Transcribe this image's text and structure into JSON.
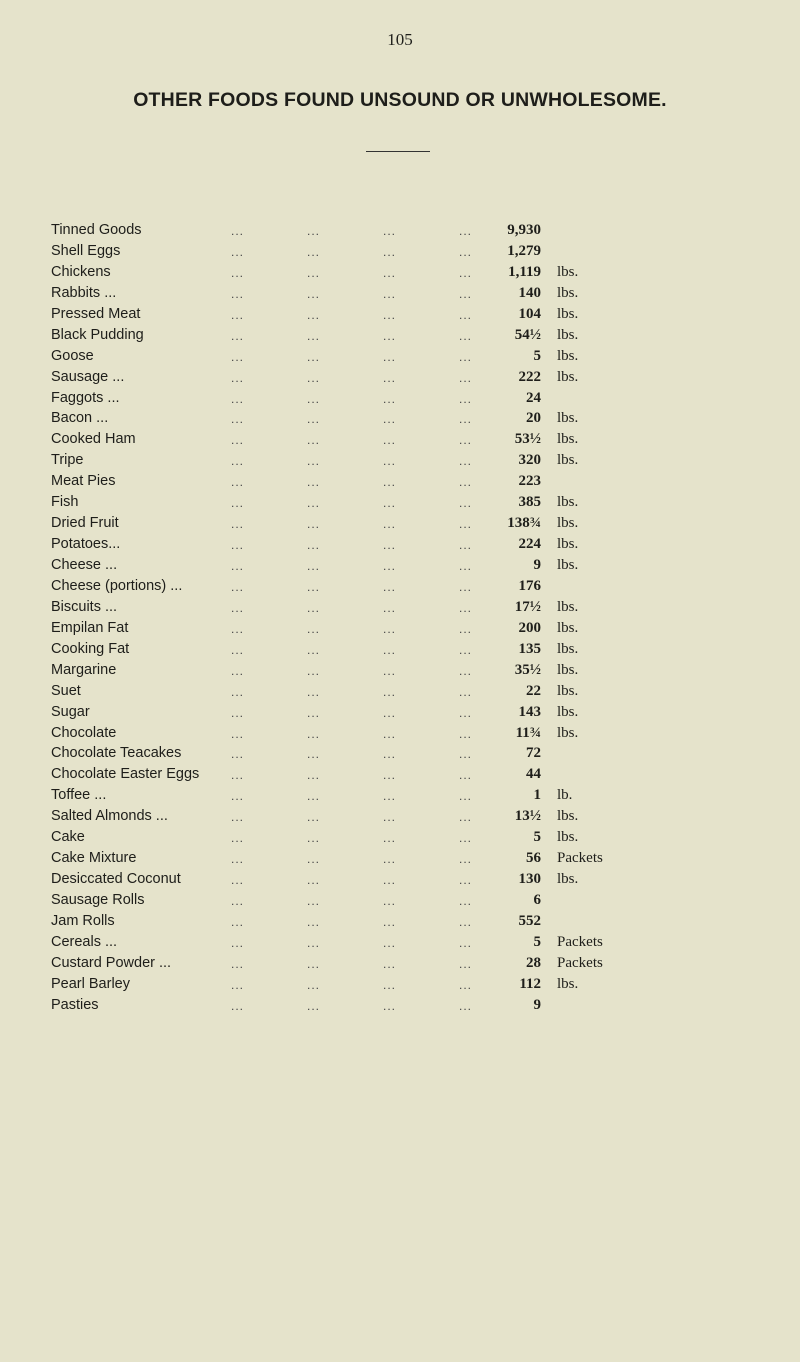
{
  "page_number": "105",
  "title": "OTHER FOODS FOUND UNSOUND OR UNWHOLESOME.",
  "leader": "...",
  "items": [
    {
      "name": "Tinned Goods",
      "value": "9,930",
      "unit": ""
    },
    {
      "name": "Shell Eggs",
      "value": "1,279",
      "unit": ""
    },
    {
      "name": "Chickens",
      "value": "1,119",
      "unit": "lbs."
    },
    {
      "name": "Rabbits ...",
      "value": "140",
      "unit": "lbs."
    },
    {
      "name": "Pressed Meat",
      "value": "104",
      "unit": "lbs."
    },
    {
      "name": "Black Pudding",
      "value": "54½",
      "unit": "lbs."
    },
    {
      "name": "Goose",
      "value": "5",
      "unit": "lbs."
    },
    {
      "name": "Sausage ...",
      "value": "222",
      "unit": "lbs."
    },
    {
      "name": "Faggots ...",
      "value": "24",
      "unit": ""
    },
    {
      "name": "Bacon ...",
      "value": "20",
      "unit": "lbs."
    },
    {
      "name": "Cooked Ham",
      "value": "53½",
      "unit": "lbs."
    },
    {
      "name": "Tripe",
      "value": "320",
      "unit": "lbs."
    },
    {
      "name": "Meat Pies",
      "value": "223",
      "unit": ""
    },
    {
      "name": "Fish",
      "value": "385",
      "unit": "lbs."
    },
    {
      "name": "Dried Fruit",
      "value": "138¾",
      "unit": "lbs."
    },
    {
      "name": "Potatoes...",
      "value": "224",
      "unit": "lbs."
    },
    {
      "name": "Cheese ...",
      "value": "9",
      "unit": "lbs."
    },
    {
      "name": "Cheese (portions) ...",
      "value": "176",
      "unit": ""
    },
    {
      "name": "Biscuits ...",
      "value": "17½",
      "unit": "lbs."
    },
    {
      "name": "Empilan Fat",
      "value": "200",
      "unit": "lbs."
    },
    {
      "name": "Cooking Fat",
      "value": "135",
      "unit": "lbs."
    },
    {
      "name": "Margarine",
      "value": "35½",
      "unit": "lbs."
    },
    {
      "name": "Suet",
      "value": "22",
      "unit": "lbs."
    },
    {
      "name": "Sugar",
      "value": "143",
      "unit": "lbs."
    },
    {
      "name": "Chocolate",
      "value": "11¾",
      "unit": "lbs."
    },
    {
      "name": "Chocolate Teacakes",
      "value": "72",
      "unit": ""
    },
    {
      "name": "Chocolate Easter Eggs",
      "value": "44",
      "unit": ""
    },
    {
      "name": "Toffee ...",
      "value": "1",
      "unit": "lb."
    },
    {
      "name": "Salted Almonds ...",
      "value": "13½",
      "unit": "lbs."
    },
    {
      "name": "Cake",
      "value": "5",
      "unit": "lbs."
    },
    {
      "name": "Cake Mixture",
      "value": "56",
      "unit": "Packets"
    },
    {
      "name": "Desiccated Coconut",
      "value": "130",
      "unit": "lbs."
    },
    {
      "name": "Sausage Rolls",
      "value": "6",
      "unit": ""
    },
    {
      "name": "Jam Rolls",
      "value": "552",
      "unit": ""
    },
    {
      "name": "Cereals ...",
      "value": "5",
      "unit": "Packets"
    },
    {
      "name": "Custard Powder ...",
      "value": "28",
      "unit": "Packets"
    },
    {
      "name": "Pearl Barley",
      "value": "112",
      "unit": "lbs."
    },
    {
      "name": "Pasties",
      "value": "9",
      "unit": ""
    }
  ]
}
